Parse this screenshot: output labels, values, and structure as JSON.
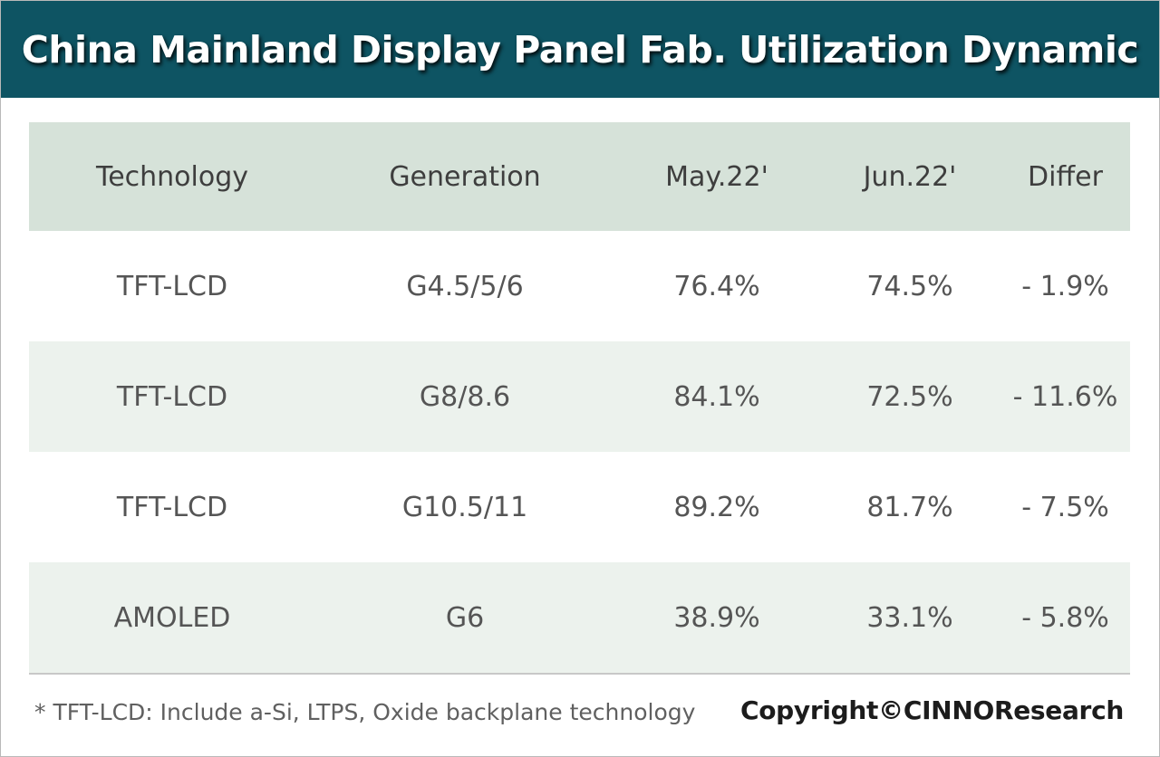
{
  "title": "China Mainland Display Panel Fab. Utilization Dynamic",
  "table": {
    "headers": [
      "Technology",
      "Generation",
      "May.22'",
      "Jun.22'",
      "Differ"
    ],
    "rows": [
      [
        "TFT-LCD",
        "G4.5/5/6",
        "76.4%",
        "74.5%",
        "- 1.9%"
      ],
      [
        "TFT-LCD",
        "G8/8.6",
        "84.1%",
        "72.5%",
        "- 11.6%"
      ],
      [
        "TFT-LCD",
        "G10.5/11",
        "89.2%",
        "81.7%",
        "- 7.5%"
      ],
      [
        "AMOLED",
        "G6",
        "38.9%",
        "33.1%",
        "- 5.8%"
      ]
    ]
  },
  "footnote": "* TFT-LCD: Include a-Si, LTPS, Oxide backplane technology",
  "copyright": "Copyright©CINNOResearch",
  "colors": {
    "title_bar": "#0e5463",
    "header_row": "#d6e2d9",
    "shaded_row": "#ecf2ed"
  }
}
